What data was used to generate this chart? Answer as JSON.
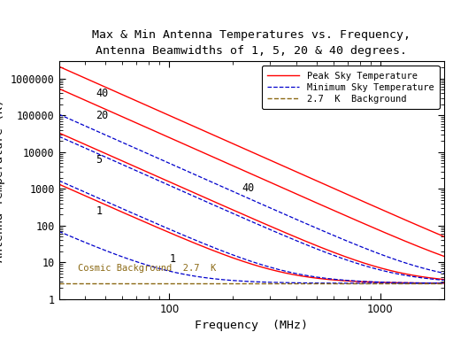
{
  "title_line1": "Max & Min Antenna Temperatures vs. Frequency,",
  "title_line2": "Antenna Beamwidths of 1, 5, 20 & 40 degrees.",
  "xlabel": "Frequency  (MHz)",
  "ylabel": "Antenna Temperature (K)",
  "freq_min": 30,
  "freq_max": 2000,
  "ylim_min": 1,
  "ylim_max": 3000000,
  "cosmic_bg_temp": 2.7,
  "peak_color": "#ff0000",
  "min_color": "#0000cc",
  "bg_line_color": "#8B6914",
  "legend_peak": "Peak Sky Temperature",
  "legend_min": "Minimum Sky Temperature",
  "legend_bg": "2.7  K  Background",
  "cosmic_label": "Cosmic Background  2.7  K",
  "title_fontsize": 9.5,
  "axis_fontsize": 9.5,
  "tick_fontsize": 8.5,
  "label_fontsize": 8.5,
  "peak_T_ref": 100000,
  "peak_f_ref": 100,
  "peak_alpha": 2.55,
  "peak_beam_ref": 40,
  "min_T_ref": 5000,
  "min_f_ref": 100,
  "min_alpha": 2.55,
  "min_beam_ref": 40
}
